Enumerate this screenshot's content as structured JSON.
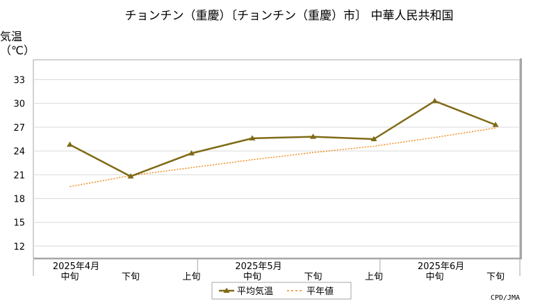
{
  "chart_data": {
    "type": "line",
    "title": "チョンチン（重慶）〔チョンチン（重慶）市〕 中華人民共和国",
    "ylabel": "気温",
    "yunit": "（℃）",
    "ylim": [
      10.5,
      35.5
    ],
    "yticks": [
      12,
      15,
      18,
      21,
      24,
      27,
      30,
      33
    ],
    "grid": true,
    "categories": [
      "中旬",
      "下旬",
      "上旬",
      "中旬",
      "下旬",
      "上旬",
      "中旬",
      "下旬"
    ],
    "month_labels": [
      {
        "label": "2025年4月",
        "category_index": 0
      },
      {
        "label": "2025年5月",
        "category_index": 3
      },
      {
        "label": "2025年6月",
        "category_index": 6
      }
    ],
    "series": [
      {
        "name": "平均気温",
        "color": "#7f6a16",
        "style": "solid-triangle",
        "values": [
          24.8,
          20.8,
          23.7,
          25.6,
          25.8,
          25.5,
          30.3,
          27.3
        ]
      },
      {
        "name": "平年値",
        "color": "#f08c1e",
        "style": "dotted",
        "values": [
          19.5,
          20.9,
          21.9,
          22.9,
          23.8,
          24.6,
          25.7,
          26.9
        ]
      }
    ],
    "legend_position": "bottom-center",
    "credit": "CPD/JMA"
  }
}
